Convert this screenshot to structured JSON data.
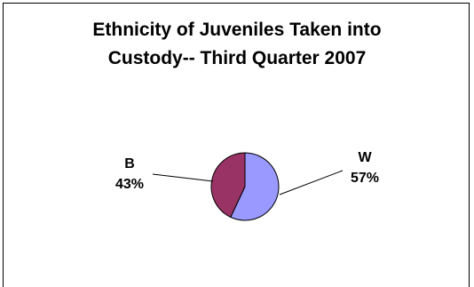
{
  "chart_data": {
    "type": "pie",
    "title_lines": [
      "Ethnicity of Juveniles Taken into",
      "Custody-- Third Quarter 2007"
    ],
    "slices": [
      {
        "category": "W",
        "value": 57,
        "label": "57%",
        "color": "#9999ff"
      },
      {
        "category": "B",
        "value": 43,
        "label": "43%",
        "color": "#993366"
      }
    ],
    "legend": "none"
  }
}
